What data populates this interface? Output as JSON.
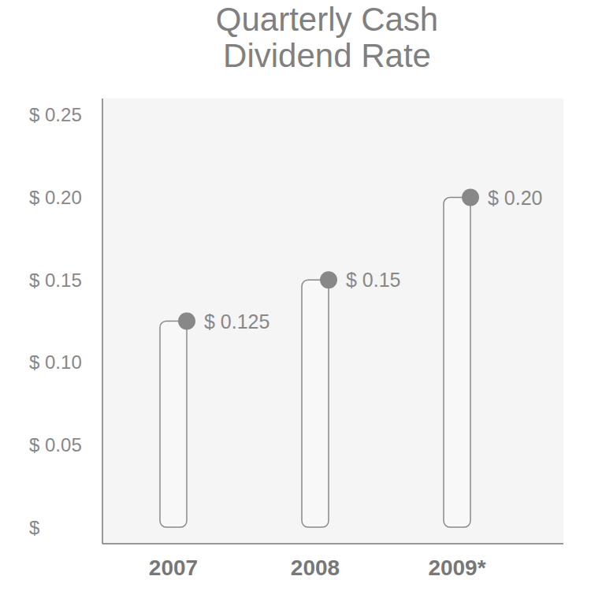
{
  "chart_data": {
    "type": "bar",
    "title": "Quarterly Cash Dividend Rate",
    "categories": [
      "2007",
      "2008",
      "2009*"
    ],
    "values": [
      0.125,
      0.15,
      0.2
    ],
    "value_labels": [
      "$ 0.125",
      "$ 0.15",
      "$ 0.20"
    ],
    "data_labels": true,
    "color": "#888888",
    "ylim": [
      -0.01,
      0.26
    ],
    "yticks": [
      {
        "value": 0,
        "label": "$"
      },
      {
        "value": 0.05,
        "label": "$ 0.05"
      },
      {
        "value": 0.1,
        "label": "$ 0.10"
      },
      {
        "value": 0.15,
        "label": "$ 0.15"
      },
      {
        "value": 0.2,
        "label": "$ 0.20"
      },
      {
        "value": 0.25,
        "label": "$ 0.25"
      }
    ],
    "grid": false
  }
}
